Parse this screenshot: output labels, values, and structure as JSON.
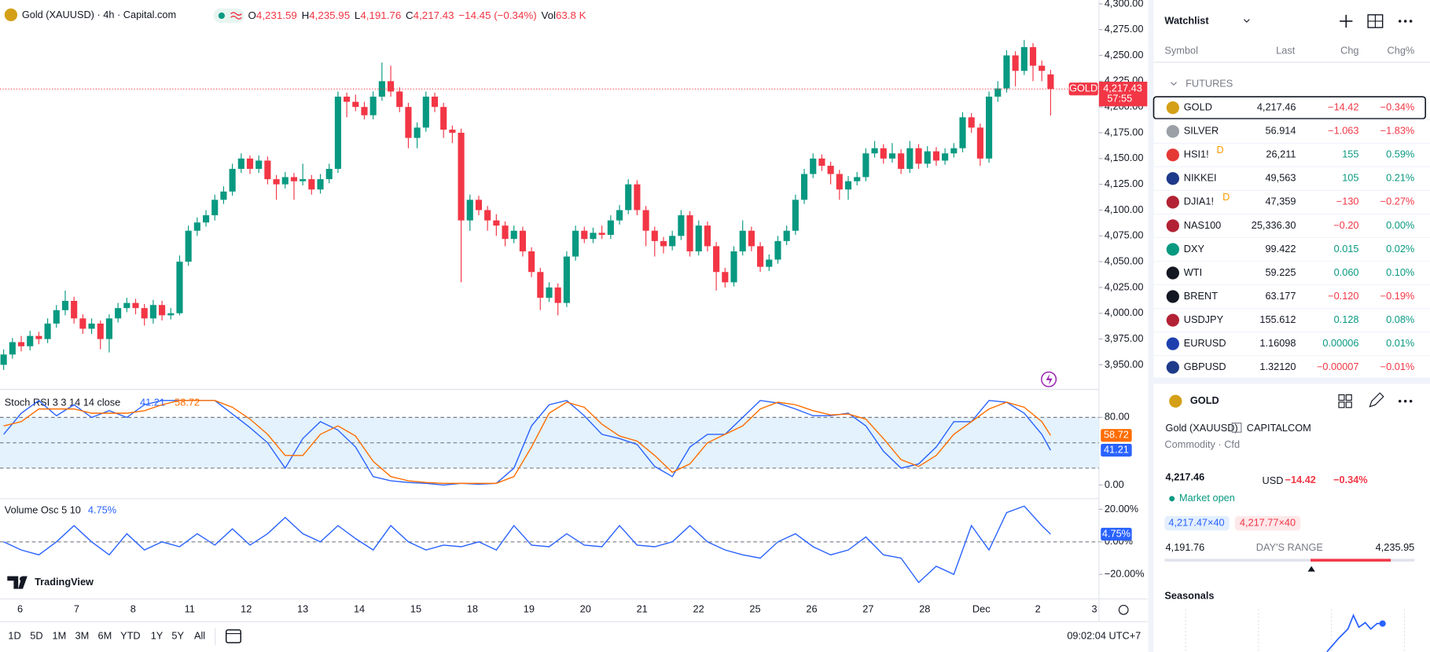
{
  "header": {
    "title": "Gold (XAUUSD) · 4h · Capital.com",
    "ohlc": [
      {
        "label": "O",
        "value": "4,231.59"
      },
      {
        "label": "H",
        "value": "4,235.95"
      },
      {
        "label": "L",
        "value": "4,191.76"
      },
      {
        "label": "C",
        "value": "4,217.43"
      }
    ],
    "change": "−14.45 (−0.34%)",
    "volume_label": "Vol",
    "volume": "63.8 K"
  },
  "chart_data": [
    {
      "type": "candlestick",
      "up_color": "#089981",
      "down_color": "#f23645",
      "ylim": [
        3928,
        4303.5
      ],
      "yticks": [
        {
          "value": 4300,
          "label": "4,300.00"
        },
        {
          "value": 4275,
          "label": "4,275.00"
        },
        {
          "value": 4250,
          "label": "4,250.00"
        },
        {
          "value": 4225,
          "label": "4,225.00"
        },
        {
          "value": 4200,
          "label": "4,200.00"
        },
        {
          "value": 4175,
          "label": "4,175.00"
        },
        {
          "value": 4150,
          "label": "4,150.00"
        },
        {
          "value": 4125,
          "label": "4,125.00"
        },
        {
          "value": 4100,
          "label": "4,100.00"
        },
        {
          "value": 4075,
          "label": "4,075.00"
        },
        {
          "value": 4050,
          "label": "4,050.00"
        },
        {
          "value": 4025,
          "label": "4,025.00"
        },
        {
          "value": 4000,
          "label": "4,000.00"
        },
        {
          "value": 3975,
          "label": "3,975.00"
        },
        {
          "value": 3950,
          "label": "3,950.00"
        }
      ],
      "symbol_tag": "GOLD",
      "last_label": "4,217.43",
      "countdown": "57:55",
      "open": [
        3950,
        3960,
        3972,
        3968,
        3978,
        3975,
        3990,
        4003,
        4012,
        3995,
        3985,
        3990,
        3975,
        3995,
        4005,
        4010,
        4005,
        3995,
        4008,
        3998,
        4000,
        4050,
        4080,
        4088,
        4095,
        4110,
        4118,
        4140,
        4150,
        4140,
        4148,
        4130,
        4125,
        4132,
        4128,
        4130,
        4120,
        4130,
        4140,
        4210,
        4205,
        4200,
        4192,
        4210,
        4225,
        4215,
        4200,
        4170,
        4180,
        4210,
        4200,
        4178,
        4175,
        4090,
        4110,
        4100,
        4090,
        4085,
        4072,
        4080,
        4060,
        4040,
        4015,
        4025,
        4010,
        4055,
        4080,
        4072,
        4078,
        4076,
        4090,
        4100,
        4125,
        4100,
        4080,
        4070,
        4065,
        4075,
        4095,
        4060,
        4085,
        4065,
        4040,
        4030,
        4060,
        4080,
        4065,
        4045,
        4052,
        4070,
        4080,
        4110,
        4135,
        4150,
        4143,
        4135,
        4120,
        4128,
        4132,
        4155,
        4160,
        4150,
        4155,
        4140,
        4160,
        4145,
        4157,
        4148,
        4155,
        4160,
        4190,
        4180,
        4150,
        4210,
        4218,
        4250,
        4235,
        4258,
        4240,
        4231.59
      ],
      "high": [
        3965,
        3976,
        3978,
        3983,
        3982,
        3995,
        4008,
        4022,
        4016,
        3999,
        3995,
        3993,
        3999,
        4010,
        4015,
        4014,
        4009,
        4013,
        4012,
        4005,
        4056,
        4085,
        4093,
        4100,
        4115,
        4123,
        4145,
        4155,
        4153,
        4153,
        4152,
        4134,
        4137,
        4136,
        4145,
        4134,
        4135,
        4145,
        4215,
        4214,
        4212,
        4205,
        4215,
        4243,
        4240,
        4219,
        4204,
        4185,
        4215,
        4214,
        4204,
        4182,
        4179,
        4115,
        4114,
        4104,
        4096,
        4089,
        4085,
        4084,
        4064,
        4044,
        4030,
        4029,
        4060,
        4085,
        4084,
        4083,
        4085,
        4095,
        4105,
        4130,
        4129,
        4104,
        4084,
        4074,
        4080,
        4100,
        4099,
        4090,
        4089,
        4069,
        4044,
        4065,
        4090,
        4084,
        4069,
        4057,
        4075,
        4085,
        4115,
        4140,
        4155,
        4154,
        4147,
        4139,
        4133,
        4137,
        4160,
        4167,
        4164,
        4165,
        4159,
        4167,
        4164,
        4162,
        4161,
        4160,
        4165,
        4195,
        4194,
        4184,
        4215,
        4225,
        4255,
        4254,
        4265,
        4262,
        4245,
        4235.95
      ],
      "low": [
        3945,
        3956,
        3963,
        3964,
        3970,
        3971,
        3986,
        3998,
        3990,
        3980,
        3980,
        3965,
        3962,
        3991,
        4001,
        3999,
        3988,
        3990,
        3993,
        3994,
        3998,
        4046,
        4075,
        4084,
        4090,
        4106,
        4114,
        4136,
        4135,
        4136,
        4125,
        4110,
        4121,
        4110,
        4124,
        4115,
        4116,
        4126,
        4136,
        4190,
        4196,
        4188,
        4188,
        4206,
        4210,
        4195,
        4160,
        4160,
        4176,
        4195,
        4170,
        4165,
        4030,
        4080,
        4095,
        4080,
        4075,
        4065,
        4068,
        4055,
        4035,
        4003,
        4011,
        3998,
        4006,
        4051,
        4068,
        4068,
        4072,
        4072,
        4086,
        4096,
        4095,
        4065,
        4055,
        4058,
        4061,
        4071,
        4055,
        4056,
        4060,
        4022,
        4025,
        4026,
        4056,
        4060,
        4040,
        4041,
        4048,
        4066,
        4076,
        4106,
        4131,
        4138,
        4125,
        4110,
        4110,
        4124,
        4128,
        4151,
        4145,
        4146,
        4135,
        4136,
        4140,
        4141,
        4143,
        4144,
        4151,
        4156,
        4175,
        4143,
        4146,
        4205,
        4214,
        4220,
        4231,
        4225,
        4225,
        4191.76
      ],
      "close": [
        3960,
        3972,
        3968,
        3978,
        3975,
        3990,
        4003,
        4012,
        3995,
        3985,
        3990,
        3975,
        3995,
        4005,
        4010,
        4005,
        3995,
        4008,
        3998,
        4000,
        4050,
        4080,
        4088,
        4095,
        4110,
        4118,
        4140,
        4150,
        4140,
        4148,
        4130,
        4125,
        4132,
        4128,
        4130,
        4120,
        4130,
        4140,
        4210,
        4205,
        4200,
        4192,
        4210,
        4225,
        4215,
        4200,
        4170,
        4180,
        4210,
        4200,
        4178,
        4175,
        4090,
        4110,
        4100,
        4090,
        4085,
        4072,
        4080,
        4060,
        4040,
        4015,
        4025,
        4010,
        4055,
        4080,
        4072,
        4078,
        4076,
        4090,
        4100,
        4125,
        4100,
        4080,
        4070,
        4065,
        4075,
        4095,
        4060,
        4085,
        4065,
        4040,
        4030,
        4060,
        4080,
        4065,
        4045,
        4052,
        4070,
        4080,
        4110,
        4135,
        4150,
        4143,
        4135,
        4120,
        4128,
        4132,
        4155,
        4160,
        4150,
        4155,
        4140,
        4160,
        4145,
        4157,
        4148,
        4155,
        4160,
        4190,
        4180,
        4150,
        4210,
        4218,
        4250,
        4235,
        4258,
        4240,
        4235,
        4217.43
      ]
    },
    {
      "type": "line",
      "title": "Stoch RSI 3 3 14 14 close",
      "ylim": [
        -14,
        110
      ],
      "yticks": [
        {
          "value": 80,
          "label": "80.00"
        },
        {
          "value": 0,
          "label": "0.00"
        }
      ],
      "band": [
        20,
        80
      ],
      "midline": 50,
      "band_color": "#e3f2fd",
      "x": [
        0,
        2,
        4,
        6,
        8,
        10,
        12,
        14,
        16,
        18,
        20,
        22,
        24,
        26,
        28,
        30,
        32,
        34,
        36,
        38,
        40,
        42,
        44,
        46,
        48,
        50,
        52,
        54,
        56,
        58,
        60,
        62,
        64,
        66,
        68,
        70,
        72,
        74,
        76,
        78,
        80,
        82,
        84,
        86,
        88,
        90,
        92,
        94,
        96,
        98,
        100,
        102,
        104,
        106,
        108,
        110,
        112,
        114,
        116,
        118,
        119
      ],
      "series": [
        {
          "color": "#2962ff",
          "values": [
            60,
            85,
            100,
            82,
            95,
            80,
            88,
            80,
            95,
            100,
            100,
            100,
            100,
            84,
            68,
            50,
            20,
            55,
            75,
            65,
            45,
            10,
            5,
            3,
            2,
            0,
            2,
            1,
            2,
            20,
            70,
            95,
            100,
            82,
            60,
            55,
            48,
            22,
            10,
            45,
            60,
            60,
            80,
            100,
            97,
            90,
            82,
            82,
            85,
            70,
            40,
            20,
            25,
            45,
            75,
            75,
            100,
            98,
            85,
            60,
            41.21
          ]
        },
        {
          "color": "#ff6d00",
          "values": [
            70,
            75,
            90,
            90,
            90,
            85,
            85,
            85,
            88,
            95,
            100,
            100,
            100,
            92,
            78,
            60,
            35,
            35,
            60,
            70,
            58,
            28,
            10,
            5,
            3,
            2,
            2,
            2,
            2,
            10,
            45,
            85,
            98,
            92,
            72,
            58,
            52,
            35,
            15,
            25,
            50,
            60,
            70,
            90,
            98,
            95,
            88,
            83,
            84,
            78,
            55,
            30,
            22,
            35,
            60,
            75,
            90,
            98,
            92,
            75,
            58.72
          ]
        }
      ]
    },
    {
      "type": "line",
      "title": "Volume Osc 5 10",
      "ylim": [
        -34,
        26
      ],
      "yticks": [
        {
          "value": 20,
          "label": "20.00%"
        },
        {
          "value": 0,
          "label": "0.00%"
        },
        {
          "value": -20,
          "label": "−20.00%"
        }
      ],
      "midline": 0,
      "x": [
        0,
        2,
        4,
        6,
        8,
        10,
        12,
        14,
        16,
        18,
        20,
        22,
        24,
        26,
        28,
        30,
        32,
        34,
        36,
        38,
        40,
        42,
        44,
        46,
        48,
        50,
        52,
        54,
        56,
        58,
        60,
        62,
        64,
        66,
        68,
        70,
        72,
        74,
        76,
        78,
        80,
        82,
        84,
        86,
        88,
        90,
        92,
        94,
        96,
        98,
        100,
        102,
        104,
        106,
        108,
        110,
        112,
        114,
        116,
        118,
        119
      ],
      "series": [
        {
          "color": "#2962ff",
          "last_label": "4.75%",
          "values": [
            0,
            -5,
            -8,
            0,
            10,
            0,
            -8,
            5,
            -5,
            0,
            -3,
            5,
            -2,
            8,
            -2,
            5,
            15,
            5,
            0,
            10,
            2,
            -5,
            10,
            0,
            -5,
            -2,
            -3,
            0,
            -5,
            10,
            -2,
            -3,
            5,
            -2,
            -3,
            10,
            -2,
            -3,
            0,
            10,
            0,
            -5,
            -8,
            -10,
            0,
            5,
            -3,
            -8,
            -5,
            3,
            -8,
            -10,
            -25,
            -15,
            -20,
            10,
            -5,
            18,
            22,
            10,
            4.75
          ]
        }
      ]
    }
  ],
  "time_axis": [
    "6",
    "7",
    "8",
    "11",
    "12",
    "13",
    "14",
    "15",
    "18",
    "19",
    "20",
    "21",
    "22",
    "25",
    "26",
    "27",
    "28",
    "Dec",
    "2",
    "3"
  ],
  "logo": "TradingView",
  "toolbar": {
    "ranges": [
      "1D",
      "5D",
      "1M",
      "3M",
      "6M",
      "YTD",
      "1Y",
      "5Y",
      "All"
    ],
    "clock": "09:02:04 UTC+7"
  },
  "watchlist": {
    "title": "Watchlist",
    "columns": [
      "Symbol",
      "Last",
      "Chg",
      "Chg%"
    ],
    "group": "FUTURES",
    "rows": [
      {
        "symbol": "GOLD",
        "last": "4,217.46",
        "chg": "−14.42",
        "chg_pct": "−0.34%",
        "icon": "#d4a017"
      },
      {
        "symbol": "SILVER",
        "last": "56.914",
        "chg": "−1.063",
        "chg_pct": "−1.83%",
        "icon": "#9aa0a6"
      },
      {
        "symbol": "HSI1!",
        "badge": "D",
        "last": "26,211",
        "chg": "155",
        "chg_pct": "0.59%",
        "icon": "#e53935"
      },
      {
        "symbol": "NIKKEI",
        "last": "49,563",
        "chg": "105",
        "chg_pct": "0.21%",
        "icon": "#1e3a8a"
      },
      {
        "symbol": "DJIA1!",
        "badge": "D",
        "last": "47,359",
        "chg": "−130",
        "chg_pct": "−0.27%",
        "icon": "#b22234"
      },
      {
        "symbol": "NAS100",
        "last": "25,336.30",
        "chg": "−0.20",
        "chg_pct": "0.00%",
        "icon": "#b22234"
      },
      {
        "symbol": "DXY",
        "last": "99.422",
        "chg": "0.015",
        "chg_pct": "0.02%",
        "icon": "#089981"
      },
      {
        "symbol": "WTI",
        "last": "59.225",
        "chg": "0.060",
        "chg_pct": "0.10%",
        "icon": "#131722"
      },
      {
        "symbol": "BRENT",
        "last": "63.177",
        "chg": "−0.120",
        "chg_pct": "−0.19%",
        "icon": "#131722"
      },
      {
        "symbol": "USDJPY",
        "last": "155.612",
        "chg": "0.128",
        "chg_pct": "0.08%",
        "icon": "#b22234"
      },
      {
        "symbol": "EURUSD",
        "last": "1.16098",
        "chg": "0.00006",
        "chg_pct": "0.01%",
        "icon": "#1e40af"
      },
      {
        "symbol": "GBPUSD",
        "last": "1.32120",
        "chg": "−0.00007",
        "chg_pct": "−0.01%",
        "icon": "#1e3a8a"
      }
    ]
  },
  "details": {
    "symbol": "GOLD",
    "name": "Gold (XAUUSD)",
    "exchange": "CAPITALCOM",
    "category": "Commodity · Cfd",
    "price": "4,217.46",
    "currency": "USD",
    "change": "−14.42",
    "change_pct": "−0.34%",
    "status": "Market open",
    "bid": "4,217.47×40",
    "ask": "4,217.77×40",
    "day_low": "4,191.76",
    "range_label": "DAY'S RANGE",
    "day_high": "4,235.95",
    "seasonals": "Seasonals"
  }
}
